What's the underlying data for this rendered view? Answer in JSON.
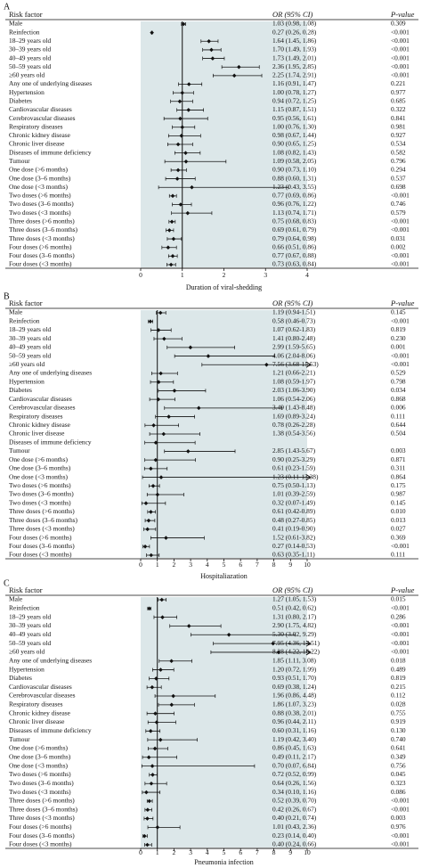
{
  "colors": {
    "shade": "#dce7e9",
    "ink": "#111111"
  },
  "chart_data": [
    {
      "panel": "A",
      "type": "forest",
      "xlabel": "Duration of viral-shedding",
      "xlim": [
        0,
        4
      ],
      "xticks": [
        "0",
        "1",
        "2",
        "3",
        "4"
      ],
      "reference_line": 1,
      "header": {
        "factor": "Risk factor",
        "or": "OR (95% CI)",
        "p": "P-value"
      },
      "rows": [
        {
          "label": "Male",
          "or": 1.03,
          "lo": 0.98,
          "hi": 1.08,
          "ci_text": "1.03 (0.98, 1.08)",
          "p": "0.309"
        },
        {
          "label": "Reinfection",
          "or": 0.27,
          "lo": 0.26,
          "hi": 0.28,
          "ci_text": "0.27 (0.26, 0.28)",
          "p": "<0.001"
        },
        {
          "label": "18–29 years old",
          "or": 1.64,
          "lo": 1.45,
          "hi": 1.86,
          "ci_text": "1.64 (1.45, 1.86)",
          "p": "<0.001"
        },
        {
          "label": "30–39 years old",
          "or": 1.7,
          "lo": 1.49,
          "hi": 1.93,
          "ci_text": "1.70 (1.49, 1.93)",
          "p": "<0.001"
        },
        {
          "label": "40–49 years old",
          "or": 1.73,
          "lo": 1.49,
          "hi": 2.01,
          "ci_text": "1.73 (1.49, 2.01)",
          "p": "<0.001"
        },
        {
          "label": "50–59 years old",
          "or": 2.36,
          "lo": 1.95,
          "hi": 2.85,
          "ci_text": "2.36 (1.95, 2.85)",
          "p": "<0.001"
        },
        {
          "label": "≥60 years old",
          "or": 2.25,
          "lo": 1.74,
          "hi": 2.91,
          "ci_text": "2.25 (1.74, 2.91)",
          "p": "<0.001"
        },
        {
          "label": "Any one of underlying diseases",
          "or": 1.16,
          "lo": 0.91,
          "hi": 1.47,
          "ci_text": "1.16 (0.91, 1.47)",
          "p": "0.221"
        },
        {
          "label": "Hypertension",
          "or": 1.0,
          "lo": 0.78,
          "hi": 1.27,
          "ci_text": "1.00 (0.78, 1.27)",
          "p": "0.977"
        },
        {
          "label": "Diabetes",
          "or": 0.94,
          "lo": 0.72,
          "hi": 1.25,
          "ci_text": "0.94 (0.72, 1.25)",
          "p": "0.685"
        },
        {
          "label": "Cardiovascular diseases",
          "or": 1.15,
          "lo": 0.87,
          "hi": 1.51,
          "ci_text": "1.15 (0.87, 1.51)",
          "p": "0.322"
        },
        {
          "label": "Cerebrovascular diseases",
          "or": 0.95,
          "lo": 0.56,
          "hi": 1.61,
          "ci_text": "0.95 (0.56, 1.61)",
          "p": "0.841"
        },
        {
          "label": "Respiratory diseases",
          "or": 1.0,
          "lo": 0.76,
          "hi": 1.3,
          "ci_text": "1.00 (0.76, 1.30)",
          "p": "0.981"
        },
        {
          "label": "Chronic kidney disease",
          "or": 0.98,
          "lo": 0.67,
          "hi": 1.44,
          "ci_text": "0.98 (0.67, 1.44)",
          "p": "0.927"
        },
        {
          "label": "Chronic liver disease",
          "or": 0.9,
          "lo": 0.65,
          "hi": 1.25,
          "ci_text": "0.90 (0.65, 1.25)",
          "p": "0.534"
        },
        {
          "label": "Diseases of immune deficiency",
          "or": 1.08,
          "lo": 0.82,
          "hi": 1.43,
          "ci_text": "1.08 (0.82, 1.43)",
          "p": "0.582"
        },
        {
          "label": "Tumour",
          "or": 1.09,
          "lo": 0.58,
          "hi": 2.05,
          "ci_text": "1.09 (0.58, 2.05)",
          "p": "0.796"
        },
        {
          "label": "One dose (>6 months)",
          "or": 0.9,
          "lo": 0.73,
          "hi": 1.1,
          "ci_text": "0.90 (0.73, 1.10)",
          "p": "0.294"
        },
        {
          "label": "One dose (3–6 months)",
          "or": 0.88,
          "lo": 0.6,
          "hi": 1.31,
          "ci_text": "0.88 (0.60, 1.31)",
          "p": "0.537"
        },
        {
          "label": "One dose (<3 months)",
          "or": 1.23,
          "lo": 0.43,
          "hi": 3.55,
          "ci_text": "1.23 (0.43, 3.55)",
          "p": "0.698"
        },
        {
          "label": "Two doses (>6 months)",
          "or": 0.77,
          "lo": 0.69,
          "hi": 0.86,
          "ci_text": "0.77 (0.69, 0.86)",
          "p": "<0.001"
        },
        {
          "label": "Two doses (3–6 months)",
          "or": 0.96,
          "lo": 0.76,
          "hi": 1.22,
          "ci_text": "0.96 (0.76, 1.22)",
          "p": "0.746"
        },
        {
          "label": "Two doses (<3 months)",
          "or": 1.13,
          "lo": 0.74,
          "hi": 1.71,
          "ci_text": "1.13 (0.74, 1.71)",
          "p": "0.579"
        },
        {
          "label": "Three doses (>6 months)",
          "or": 0.75,
          "lo": 0.68,
          "hi": 0.83,
          "ci_text": "0.75 (0.68, 0.83)",
          "p": "<0.001"
        },
        {
          "label": "Three doses (3–6 months)",
          "or": 0.69,
          "lo": 0.61,
          "hi": 0.79,
          "ci_text": "0.69 (0.61, 0.79)",
          "p": "<0.001"
        },
        {
          "label": "Three doses (<3 months)",
          "or": 0.79,
          "lo": 0.64,
          "hi": 0.98,
          "ci_text": "0.79 (0.64, 0.98)",
          "p": "0.031"
        },
        {
          "label": "Four doses (>6 months)",
          "or": 0.66,
          "lo": 0.51,
          "hi": 0.86,
          "ci_text": "0.66 (0.51, 0.86)",
          "p": "0.002"
        },
        {
          "label": "Four doses (3–6 months)",
          "or": 0.77,
          "lo": 0.67,
          "hi": 0.88,
          "ci_text": "0.77 (0.67, 0.88)",
          "p": "<0.001"
        },
        {
          "label": "Four doses (<3 months)",
          "or": 0.73,
          "lo": 0.63,
          "hi": 0.84,
          "ci_text": "0.73 (0.63, 0.84)",
          "p": "<0.001"
        }
      ]
    },
    {
      "panel": "B",
      "type": "forest",
      "xlabel": "Hospitaliazation",
      "xlim": [
        0,
        10
      ],
      "xticks": [
        "0",
        "1",
        "2",
        "3",
        "4",
        "5",
        "6",
        "7",
        "8",
        "9",
        "10"
      ],
      "reference_line": 1,
      "header": {
        "factor": "Risk factor",
        "or": "OR (95% CI)",
        "p": "P-value"
      },
      "rows": [
        {
          "label": "Male",
          "or": 1.19,
          "lo": 0.94,
          "hi": 1.51,
          "ci_text": "1.19 (0.94-1.51)",
          "p": "0.145"
        },
        {
          "label": "Reinfection",
          "or": 0.58,
          "lo": 0.46,
          "hi": 0.73,
          "ci_text": "0.58 (0.46-0.73)",
          "p": "<0.001"
        },
        {
          "label": "18–29 years old",
          "or": 1.07,
          "lo": 0.62,
          "hi": 1.83,
          "ci_text": "1.07 (0.62-1.83)",
          "p": "0.819"
        },
        {
          "label": "30–39 years old",
          "or": 1.41,
          "lo": 0.8,
          "hi": 2.48,
          "ci_text": "1.41 (0.80-2.48)",
          "p": "0.230"
        },
        {
          "label": "40–49 years old",
          "or": 2.99,
          "lo": 1.59,
          "hi": 5.65,
          "ci_text": "2.99 (1.59-5.65)",
          "p": "0.001"
        },
        {
          "label": "50–59 years old",
          "or": 4.06,
          "lo": 2.04,
          "hi": 8.06,
          "ci_text": "4.06 (2.04-8.06)",
          "p": "<0.001"
        },
        {
          "label": "≥60 years old",
          "or": 7.56,
          "lo": 3.68,
          "hi": 15.53,
          "ci_text": "7.56 (3.68-15.53)",
          "p": "<0.001"
        },
        {
          "label": "Any one of underlying diseases",
          "or": 1.21,
          "lo": 0.66,
          "hi": 2.21,
          "ci_text": "1.21 (0.66-2.21)",
          "p": "0.529"
        },
        {
          "label": "Hypertension",
          "or": 1.08,
          "lo": 0.59,
          "hi": 1.97,
          "ci_text": "1.08 (0.59-1.97)",
          "p": "0.798"
        },
        {
          "label": "Diabetes",
          "or": 2.03,
          "lo": 1.06,
          "hi": 3.9,
          "ci_text": "2.03 (1.06-3.90)",
          "p": "0.034"
        },
        {
          "label": "Cardiovascular diseases",
          "or": 1.06,
          "lo": 0.54,
          "hi": 2.06,
          "ci_text": "1.06 (0.54-2.06)",
          "p": "0.868"
        },
        {
          "label": "Cerebrovascular diseases",
          "or": 3.49,
          "lo": 1.43,
          "hi": 8.48,
          "ci_text": "3.49 (1.43-8.48)",
          "p": "0.006"
        },
        {
          "label": "Respiratory diseases",
          "or": 1.69,
          "lo": 0.89,
          "hi": 3.24,
          "ci_text": "1.69 (0.89-3.24)",
          "p": "0.111"
        },
        {
          "label": "Chronic kidney disease",
          "or": 0.78,
          "lo": 0.26,
          "hi": 2.28,
          "ci_text": "0.78 (0.26-2.28)",
          "p": "0.644"
        },
        {
          "label": "Chronic liver disease",
          "or": 1.38,
          "lo": 0.54,
          "hi": 3.56,
          "ci_text": "1.38 (0.54-3.56)",
          "p": "0.504"
        },
        {
          "label": "Diseases of immune deficiency",
          "or": 0.91,
          "lo": 0.25,
          "hi": 3.27,
          "ci_text": "",
          "p": ""
        },
        {
          "label": "Tumour",
          "or": 2.85,
          "lo": 1.43,
          "hi": 5.67,
          "ci_text": "2.85 (1.43-5.67)",
          "p": "0.003"
        },
        {
          "label": "One dose (>6 months)",
          "or": 0.9,
          "lo": 0.25,
          "hi": 3.29,
          "ci_text": "0.90 (0.25-3.29)",
          "p": "0.871"
        },
        {
          "label": "One dose (3–6 months)",
          "or": 0.61,
          "lo": 0.23,
          "hi": 1.59,
          "ci_text": "0.61 (0.23-1.59)",
          "p": "0.311"
        },
        {
          "label": "One dose (<3 months)",
          "or": 1.23,
          "lo": 0.11,
          "hi": 13.38,
          "ci_text": "1.23 (0.11-13.38)",
          "p": "0.864"
        },
        {
          "label": "Two doses (>6 months)",
          "or": 0.75,
          "lo": 0.5,
          "hi": 1.13,
          "ci_text": "0.75 (0.50-1.13)",
          "p": "0.175"
        },
        {
          "label": "Two doses (3–6 months)",
          "or": 1.01,
          "lo": 0.39,
          "hi": 2.59,
          "ci_text": "1.01 (0.39-2.59)",
          "p": "0.987"
        },
        {
          "label": "Two doses (<3 months)",
          "or": 0.32,
          "lo": 0.07,
          "hi": 1.49,
          "ci_text": "0.32 (0.07-1.49)",
          "p": "0.145"
        },
        {
          "label": "Three doses (>6 months)",
          "or": 0.61,
          "lo": 0.42,
          "hi": 0.89,
          "ci_text": "0.61 (0.42-0.89)",
          "p": "0.010"
        },
        {
          "label": "Three doses (3–6 months)",
          "or": 0.48,
          "lo": 0.27,
          "hi": 0.85,
          "ci_text": "0.48 (0.27-0.85)",
          "p": "0.013"
        },
        {
          "label": "Three doses (<3 months)",
          "or": 0.41,
          "lo": 0.19,
          "hi": 0.9,
          "ci_text": "0.41 (0.19-0.90)",
          "p": "0.027"
        },
        {
          "label": "Four doses (>6 months)",
          "or": 1.52,
          "lo": 0.61,
          "hi": 3.82,
          "ci_text": "1.52 (0.61-3.82)",
          "p": "0.369"
        },
        {
          "label": "Four doses (3–6 months)",
          "or": 0.27,
          "lo": 0.14,
          "hi": 0.53,
          "ci_text": "0.27 (0.14-0.53)",
          "p": "<0.001"
        },
        {
          "label": "Four doses (<3 months)",
          "or": 0.63,
          "lo": 0.35,
          "hi": 1.11,
          "ci_text": "0.63 (0.35-1.11)",
          "p": "0.111"
        }
      ]
    },
    {
      "panel": "C",
      "type": "forest",
      "xlabel": "Pneumonia infection",
      "xlim": [
        0,
        10
      ],
      "xticks": [
        "0",
        "1",
        "2",
        "3",
        "4",
        "5",
        "6",
        "7",
        "8",
        "9",
        "10"
      ],
      "reference_line": 1,
      "header": {
        "factor": "Risk factor",
        "or": "OR (95% CI)",
        "p": "P-value"
      },
      "rows": [
        {
          "label": "Male",
          "or": 1.27,
          "lo": 1.05,
          "hi": 1.53,
          "ci_text": "1.27 (1.05, 1.53)",
          "p": "0.015"
        },
        {
          "label": "Reinfection",
          "or": 0.51,
          "lo": 0.42,
          "hi": 0.62,
          "ci_text": "0.51 (0.42, 0.62)",
          "p": "<0.001"
        },
        {
          "label": "18–29 years old",
          "or": 1.31,
          "lo": 0.8,
          "hi": 2.17,
          "ci_text": "1.31 (0.80, 2.17)",
          "p": "0.286"
        },
        {
          "label": "30–39 years old",
          "or": 2.9,
          "lo": 1.75,
          "hi": 4.82,
          "ci_text": "2.90 (1.75, 4.82)",
          "p": "<0.001"
        },
        {
          "label": "40–49 years old",
          "or": 5.3,
          "lo": 3.02,
          "hi": 9.29,
          "ci_text": "5.30 (3.02, 9.29)",
          "p": "<0.001"
        },
        {
          "label": "50–59 years old",
          "or": 7.95,
          "lo": 4.36,
          "hi": 14.51,
          "ci_text": "7.95 (4.36, 14.51)",
          "p": "<0.001"
        },
        {
          "label": "≥60 years old",
          "or": 8.28,
          "lo": 4.22,
          "hi": 16.22,
          "ci_text": "8.28 (4.22, 16.22)",
          "p": "<0.001"
        },
        {
          "label": "Any one of underlying diseases",
          "or": 1.85,
          "lo": 1.11,
          "hi": 3.08,
          "ci_text": "1.85 (1.11, 3.08)",
          "p": "0.018"
        },
        {
          "label": "Hypertension",
          "or": 1.2,
          "lo": 0.72,
          "hi": 1.99,
          "ci_text": "1.20 (0.72, 1.99)",
          "p": "0.489"
        },
        {
          "label": "Diabetes",
          "or": 0.93,
          "lo": 0.51,
          "hi": 1.7,
          "ci_text": "0.93 (0.51, 1.70)",
          "p": "0.819"
        },
        {
          "label": "Cardiovascular diseases",
          "or": 0.69,
          "lo": 0.38,
          "hi": 1.24,
          "ci_text": "0.69 (0.38, 1.24)",
          "p": "0.215"
        },
        {
          "label": "Cerebrovascular diseases",
          "or": 1.96,
          "lo": 0.86,
          "hi": 4.48,
          "ci_text": "1.96 (0.86, 4.48)",
          "p": "0.112"
        },
        {
          "label": "Respiratory diseases",
          "or": 1.86,
          "lo": 1.07,
          "hi": 3.23,
          "ci_text": "1.86 (1.07, 3.23)",
          "p": "0.028"
        },
        {
          "label": "Chronic kidney disease",
          "or": 0.88,
          "lo": 0.38,
          "hi": 2.01,
          "ci_text": "0.88 (0.38, 2.01)",
          "p": "0.755"
        },
        {
          "label": "Chronic liver disease",
          "or": 0.96,
          "lo": 0.44,
          "hi": 2.11,
          "ci_text": "0.96 (0.44, 2.11)",
          "p": "0.919"
        },
        {
          "label": "Diseases of immune deficiency",
          "or": 0.6,
          "lo": 0.31,
          "hi": 1.16,
          "ci_text": "0.60 (0.31, 1.16)",
          "p": "0.130"
        },
        {
          "label": "Tumour",
          "or": 1.19,
          "lo": 0.42,
          "hi": 3.4,
          "ci_text": "1.19 (0.42, 3.40)",
          "p": "0.740"
        },
        {
          "label": "One dose (>6 months)",
          "or": 0.86,
          "lo": 0.45,
          "hi": 1.63,
          "ci_text": "0.86 (0.45, 1.63)",
          "p": "0.641"
        },
        {
          "label": "One dose (3–6 months)",
          "or": 0.49,
          "lo": 0.11,
          "hi": 2.17,
          "ci_text": "0.49 (0.11, 2.17)",
          "p": "0.349"
        },
        {
          "label": "One dose (<3 months)",
          "or": 0.7,
          "lo": 0.07,
          "hi": 6.84,
          "ci_text": "0.70 (0.07, 6.84)",
          "p": "0.756"
        },
        {
          "label": "Two doses (>6 months)",
          "or": 0.72,
          "lo": 0.52,
          "hi": 0.99,
          "ci_text": "0.72 (0.52, 0.99)",
          "p": "0.045"
        },
        {
          "label": "Two doses (3–6 months)",
          "or": 0.64,
          "lo": 0.26,
          "hi": 1.56,
          "ci_text": "0.64 (0.26, 1.56)",
          "p": "0.323"
        },
        {
          "label": "Two doses (<3 months)",
          "or": 0.34,
          "lo": 0.1,
          "hi": 1.16,
          "ci_text": "0.34 (0.10, 1.16)",
          "p": "0.086"
        },
        {
          "label": "Three doses (>6 months)",
          "or": 0.52,
          "lo": 0.39,
          "hi": 0.7,
          "ci_text": "0.52 (0.39, 0.70)",
          "p": "<0.001"
        },
        {
          "label": "Three doses (3–6 months)",
          "or": 0.42,
          "lo": 0.26,
          "hi": 0.67,
          "ci_text": "0.42 (0.26, 0.67)",
          "p": "<0.001"
        },
        {
          "label": "Three doses (<3 months)",
          "or": 0.4,
          "lo": 0.21,
          "hi": 0.74,
          "ci_text": "0.40 (0.21, 0.74)",
          "p": "0.003"
        },
        {
          "label": "Four doses (>6 months)",
          "or": 1.01,
          "lo": 0.43,
          "hi": 2.36,
          "ci_text": "1.01 (0.43, 2.36)",
          "p": "0.976"
        },
        {
          "label": "Four doses (3–6 months)",
          "or": 0.23,
          "lo": 0.14,
          "hi": 0.4,
          "ci_text": "0.23 (0.14, 0.40)",
          "p": "<0.001"
        },
        {
          "label": "Four doses (<3 months)",
          "or": 0.4,
          "lo": 0.24,
          "hi": 0.66,
          "ci_text": "0.40 (0.24, 0.66)",
          "p": "<0.001"
        }
      ]
    }
  ]
}
